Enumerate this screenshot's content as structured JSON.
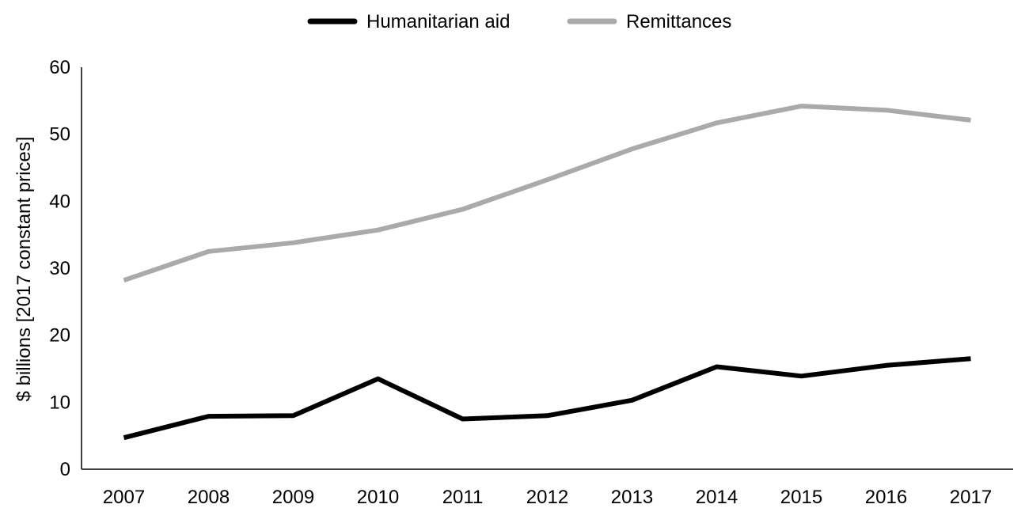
{
  "chart_data": {
    "type": "line",
    "title": "",
    "xlabel": "",
    "ylabel": "$ billions [2017 constant prices]",
    "ylim": [
      0,
      60
    ],
    "yticks": [
      0,
      10,
      20,
      30,
      40,
      50,
      60
    ],
    "x": [
      "2007",
      "2008",
      "2009",
      "2010",
      "2011",
      "2012",
      "2013",
      "2014",
      "2015",
      "2016",
      "2017"
    ],
    "grid": false,
    "legend_position": "top-center",
    "series": [
      {
        "name": "Humanitarian aid",
        "color": "#000000",
        "values": [
          4.7,
          7.9,
          8.0,
          13.5,
          7.5,
          8.0,
          10.3,
          15.3,
          13.9,
          15.5,
          16.5
        ]
      },
      {
        "name": "Remittances",
        "color": "#aaaaaa",
        "values": [
          28.2,
          32.5,
          33.8,
          35.7,
          38.8,
          43.2,
          47.8,
          51.7,
          54.2,
          53.6,
          52.1
        ]
      }
    ]
  }
}
